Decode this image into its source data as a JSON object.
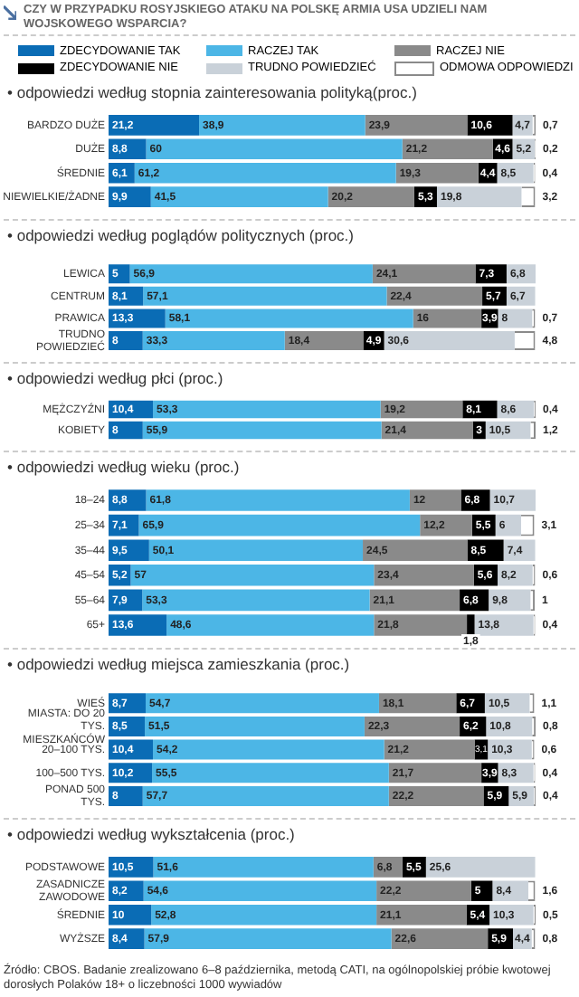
{
  "chart_data": [
    {
      "type": "bar",
      "orientation": "horizontal",
      "stacked": true,
      "title": "CZY W PRZYPADKU ROSYJSKIEGO ATAKU NA POLSKĘ ARMIA USA UDZIELI NAM WOJSKOWEGO WSPARCIA?",
      "subtitle": "• odpowiedzi według stopnia zainteresowania polityką(proc.)",
      "legend": "top",
      "tick_labels": "y",
      "grid": false,
      "categories": [
        "BARDZO DUŻE",
        "DUŻE",
        "ŚREDNIE",
        "NIEWIELKIE/ŻADNE"
      ],
      "series": [
        {
          "name": "ZDECYDOWANIE TAK",
          "color": "#0a6cb5",
          "values": [
            21.2,
            8.8,
            6.1,
            9.9
          ],
          "value_labels": [
            "21,2",
            "8,8",
            "6,1",
            "9,9"
          ]
        },
        {
          "name": "RACZEJ TAK",
          "color": "#4cb6e6",
          "values": [
            38.9,
            60,
            61.2,
            41.5
          ],
          "value_labels": [
            "38,9",
            "60",
            "61,2",
            "41,5"
          ]
        },
        {
          "name": "RACZEJ NIE",
          "color": "#8a8a8a",
          "values": [
            23.9,
            21.2,
            19.3,
            20.2
          ],
          "value_labels": [
            "23,9",
            "21,2",
            "19,3",
            "20,2"
          ]
        },
        {
          "name": "ZDECYDOWANIE NIE",
          "color": "#000000",
          "values": [
            10.6,
            4.6,
            4.4,
            5.3
          ],
          "value_labels": [
            "10,6",
            "4,6",
            "4,4",
            "5,3"
          ]
        },
        {
          "name": "TRUDNO POWIEDZIEĆ",
          "color": "#c9d1d9",
          "values": [
            4.7,
            5.2,
            8.5,
            19.8
          ],
          "value_labels": [
            "4,7",
            "5,2",
            "8,5",
            "19,8"
          ]
        },
        {
          "name": "ODMOWA ODPOWIEDZI",
          "color": "#ffffff",
          "values": [
            0.7,
            0.2,
            0.4,
            3.2
          ],
          "value_labels": [
            "0,7",
            "0,2",
            "0,4",
            "3,2"
          ]
        }
      ]
    },
    {
      "type": "bar",
      "orientation": "horizontal",
      "stacked": true,
      "title": "• odpowiedzi według poglądów politycznych (proc.)",
      "tick_labels": "y",
      "grid": false,
      "categories": [
        "LEWICA",
        "CENTRUM",
        "PRAWICA",
        "TRUDNO POWIEDZIEĆ"
      ],
      "series": [
        {
          "color": "#0a6cb5",
          "values": [
            5,
            8.1,
            13.3,
            8
          ],
          "value_labels": [
            "5",
            "8,1",
            "13,3",
            "8"
          ]
        },
        {
          "color": "#4cb6e6",
          "values": [
            56.9,
            57.1,
            58.1,
            33.3
          ],
          "value_labels": [
            "56,9",
            "57,1",
            "58,1",
            "33,3"
          ]
        },
        {
          "color": "#8a8a8a",
          "values": [
            24.1,
            22.4,
            16,
            18.4
          ],
          "value_labels": [
            "24,1",
            "22,4",
            "16",
            "18,4"
          ]
        },
        {
          "color": "#000000",
          "values": [
            7.3,
            5.7,
            3.9,
            4.9
          ],
          "value_labels": [
            "7,3",
            "5,7",
            "3,9",
            "4,9"
          ]
        },
        {
          "color": "#c9d1d9",
          "values": [
            6.8,
            6.7,
            8,
            30.6
          ],
          "value_labels": [
            "6,8",
            "6,7",
            "8",
            "30,6"
          ]
        },
        {
          "color": "#ffffff",
          "values": [
            null,
            null,
            0.7,
            4.8
          ],
          "value_labels": [
            null,
            null,
            "0,7",
            "4,8"
          ]
        }
      ]
    },
    {
      "type": "bar",
      "orientation": "horizontal",
      "stacked": true,
      "title": "• odpowiedzi według płci (proc.)",
      "tick_labels": "y",
      "grid": false,
      "categories": [
        "MĘŻCZYŹNI",
        "KOBIETY"
      ],
      "series": [
        {
          "color": "#0a6cb5",
          "values": [
            10.4,
            8
          ],
          "value_labels": [
            "10,4",
            "8"
          ]
        },
        {
          "color": "#4cb6e6",
          "values": [
            53.3,
            55.9
          ],
          "value_labels": [
            "53,3",
            "55,9"
          ]
        },
        {
          "color": "#8a8a8a",
          "values": [
            19.2,
            21.4
          ],
          "value_labels": [
            "19,2",
            "21,4"
          ]
        },
        {
          "color": "#000000",
          "values": [
            8.1,
            3
          ],
          "value_labels": [
            "8,1",
            "3"
          ]
        },
        {
          "color": "#c9d1d9",
          "values": [
            8.6,
            10.5
          ],
          "value_labels": [
            "8,6",
            "10,5"
          ]
        },
        {
          "color": "#ffffff",
          "values": [
            0.4,
            1.2
          ],
          "value_labels": [
            "0,4",
            "1,2"
          ]
        }
      ]
    },
    {
      "type": "bar",
      "orientation": "horizontal",
      "stacked": true,
      "title": "• odpowiedzi według wieku (proc.)",
      "tick_labels": "y",
      "grid": false,
      "categories": [
        "18–24",
        "25–34",
        "35–44",
        "45–54",
        "55–64",
        "65+"
      ],
      "series": [
        {
          "color": "#0a6cb5",
          "values": [
            8.8,
            7.1,
            9.5,
            5.2,
            7.9,
            13.6
          ],
          "value_labels": [
            "8,8",
            "7,1",
            "9,5",
            "5,2",
            "7,9",
            "13,6"
          ]
        },
        {
          "color": "#4cb6e6",
          "values": [
            61.8,
            65.9,
            50.1,
            57,
            53.3,
            48.6
          ],
          "value_labels": [
            "61,8",
            "65,9",
            "50,1",
            "57",
            "53,3",
            "48,6"
          ]
        },
        {
          "color": "#8a8a8a",
          "values": [
            12,
            12.2,
            24.5,
            23.4,
            21.1,
            21.8
          ],
          "value_labels": [
            "12",
            "12,2",
            "24,5",
            "23,4",
            "21,1",
            "21,8"
          ]
        },
        {
          "color": "#000000",
          "values": [
            6.8,
            5.5,
            8.5,
            5.6,
            6.8,
            1.8
          ],
          "value_labels": [
            "6,8",
            "5,5",
            "8,5",
            "5,6",
            "6,8",
            "1,8"
          ]
        },
        {
          "color": "#c9d1d9",
          "values": [
            10.7,
            6,
            7.4,
            8.2,
            9.8,
            13.8
          ],
          "value_labels": [
            "10,7",
            "6",
            "7,4",
            "8,2",
            "9,8",
            "13,8"
          ]
        },
        {
          "color": "#ffffff",
          "values": [
            null,
            3.1,
            null,
            0.6,
            1,
            0.4
          ],
          "value_labels": [
            null,
            "3,1",
            null,
            "0,6",
            "1",
            "0,4"
          ]
        }
      ]
    },
    {
      "type": "bar",
      "orientation": "horizontal",
      "stacked": true,
      "title": "• odpowiedzi według miejsca zamieszkania (proc.)",
      "tick_labels": "y",
      "grid": false,
      "categories": [
        "WIEŚ",
        "MIASTA: DO 20 TYS. MIESZKAŃCÓW",
        "20–100 TYS.",
        "100–500 TYS.",
        "PONAD 500 TYS."
      ],
      "series": [
        {
          "color": "#0a6cb5",
          "values": [
            8.7,
            8.5,
            10.4,
            10.2,
            8
          ],
          "value_labels": [
            "8,7",
            "8,5",
            "10,4",
            "10,2",
            "8"
          ]
        },
        {
          "color": "#4cb6e6",
          "values": [
            54.7,
            51.5,
            54.2,
            55.5,
            57.7
          ],
          "value_labels": [
            "54,7",
            "51,5",
            "54,2",
            "55,5",
            "57,7"
          ]
        },
        {
          "color": "#8a8a8a",
          "values": [
            18.1,
            22.3,
            21.2,
            21.7,
            22.2
          ],
          "value_labels": [
            "18,1",
            "22,3",
            "21,2",
            "21,7",
            "22,2"
          ]
        },
        {
          "color": "#000000",
          "values": [
            6.7,
            6.2,
            3.1,
            3.9,
            5.9
          ],
          "value_labels": [
            "6,7",
            "6,2",
            "3,1",
            "3,9",
            "5,9"
          ]
        },
        {
          "color": "#c9d1d9",
          "values": [
            10.5,
            10.8,
            10.3,
            8.3,
            5.9
          ],
          "value_labels": [
            "10,5",
            "10,8",
            "10,3",
            "8,3",
            "5,9"
          ]
        },
        {
          "color": "#ffffff",
          "values": [
            1.1,
            0.8,
            0.6,
            0.4,
            0.4
          ],
          "value_labels": [
            "1,1",
            "0,8",
            "0,6",
            "0,4",
            "0,4"
          ]
        }
      ]
    },
    {
      "type": "bar",
      "orientation": "horizontal",
      "stacked": true,
      "title": "• odpowiedzi według wykształcenia (proc.)",
      "tick_labels": "y",
      "grid": false,
      "categories": [
        "PODSTAWOWE",
        "ZASADNICZE ZAWODOWE",
        "ŚREDNIE",
        "WYŻSZE"
      ],
      "series": [
        {
          "color": "#0a6cb5",
          "values": [
            10.5,
            8.2,
            10,
            8.4
          ],
          "value_labels": [
            "10,5",
            "8,2",
            "10",
            "8,4"
          ]
        },
        {
          "color": "#4cb6e6",
          "values": [
            51.6,
            54.6,
            52.8,
            57.9
          ],
          "value_labels": [
            "51,6",
            "54,6",
            "52,8",
            "57,9"
          ]
        },
        {
          "color": "#8a8a8a",
          "values": [
            6.8,
            22.2,
            21.1,
            22.6
          ],
          "value_labels": [
            "6,8",
            "22,2",
            "21,1",
            "22,6"
          ]
        },
        {
          "color": "#000000",
          "values": [
            5.5,
            5,
            5.4,
            5.9
          ],
          "value_labels": [
            "5,5",
            "5",
            "5,4",
            "5,9"
          ]
        },
        {
          "color": "#c9d1d9",
          "values": [
            25.6,
            8.4,
            10.3,
            4.4
          ],
          "value_labels": [
            "25,6",
            "8,4",
            "10,3",
            "4,4"
          ]
        },
        {
          "color": "#ffffff",
          "values": [
            null,
            1.6,
            0.5,
            0.8
          ],
          "value_labels": [
            null,
            "1,6",
            "0,5",
            "0,8"
          ]
        }
      ],
      "annotations": [
        "Źródło: CBOS. Badanie zrealizowano 6–8 października, metodą CATI, na ogólnopolskiej próbie kwotowej dorosłych Polaków 18+ o liczebności 1000 wywiadów"
      ]
    }
  ]
}
